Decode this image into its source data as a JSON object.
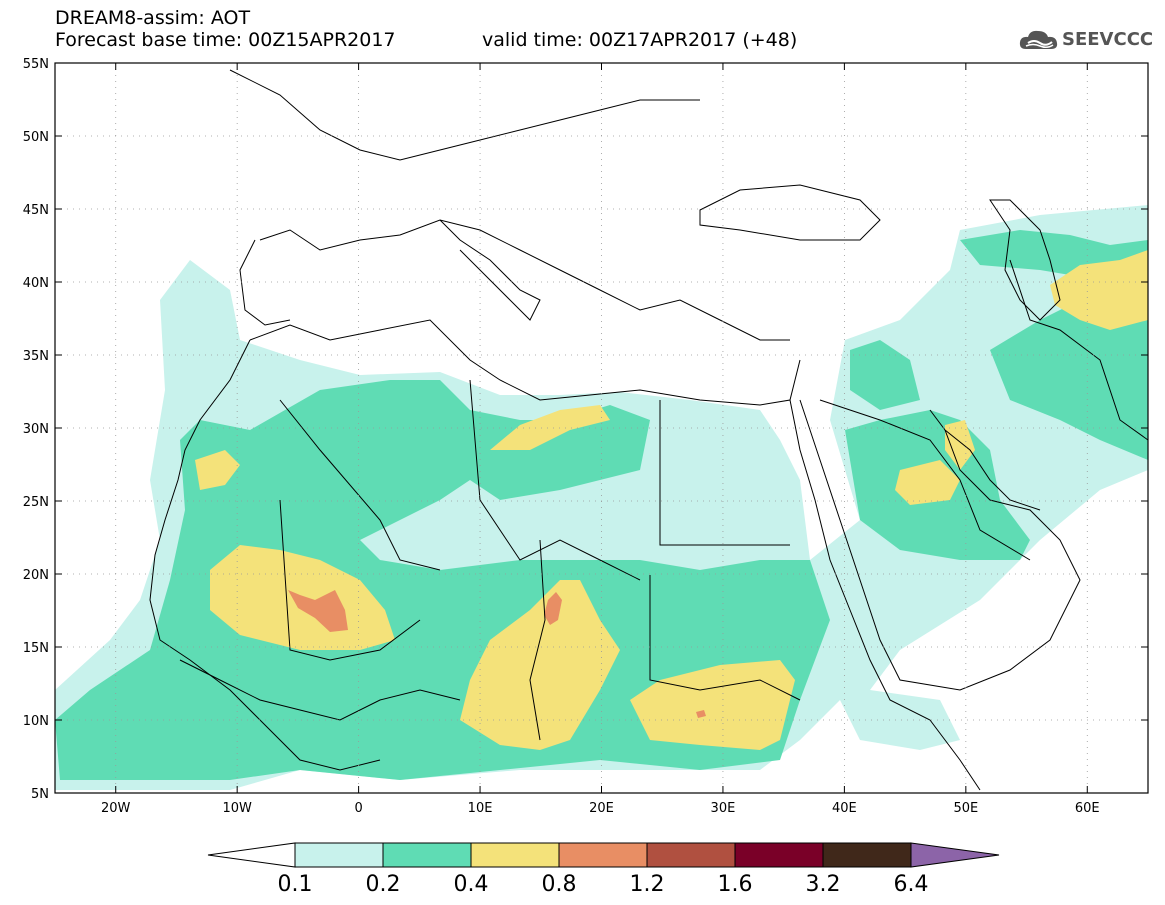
{
  "header": {
    "title": "DREAM8-assim: AOT",
    "base_time": "Forecast base time: 00Z15APR2017",
    "valid_time": "valid time: 00Z17APR2017 (+48)"
  },
  "logo": {
    "text": "SEEVCCC",
    "icon": "cloud-icon"
  },
  "map": {
    "lon_range": [
      -25,
      65
    ],
    "lat_range": [
      5,
      55
    ],
    "lat_ticks": [
      "5N",
      "10N",
      "15N",
      "20N",
      "25N",
      "30N",
      "35N",
      "40N",
      "45N",
      "50N",
      "55N"
    ],
    "lon_ticks": [
      "20W",
      "10W",
      "0",
      "10E",
      "20E",
      "30E",
      "40E",
      "50E",
      "60E"
    ],
    "lat_values": [
      5,
      10,
      15,
      20,
      25,
      30,
      35,
      40,
      45,
      50,
      55
    ],
    "lon_values": [
      -20,
      -10,
      0,
      10,
      20,
      30,
      40,
      50,
      60
    ],
    "grid": true
  },
  "colorbar": {
    "labels": [
      "0.1",
      "0.2",
      "0.4",
      "0.8",
      "1.2",
      "1.6",
      "3.2",
      "6.4"
    ],
    "colors": [
      "#ffffff",
      "#c8f2ec",
      "#5fdcb4",
      "#f4e27a",
      "#e88e64",
      "#b05040",
      "#7a0028",
      "#40281a",
      "#8c64a8"
    ]
  }
}
